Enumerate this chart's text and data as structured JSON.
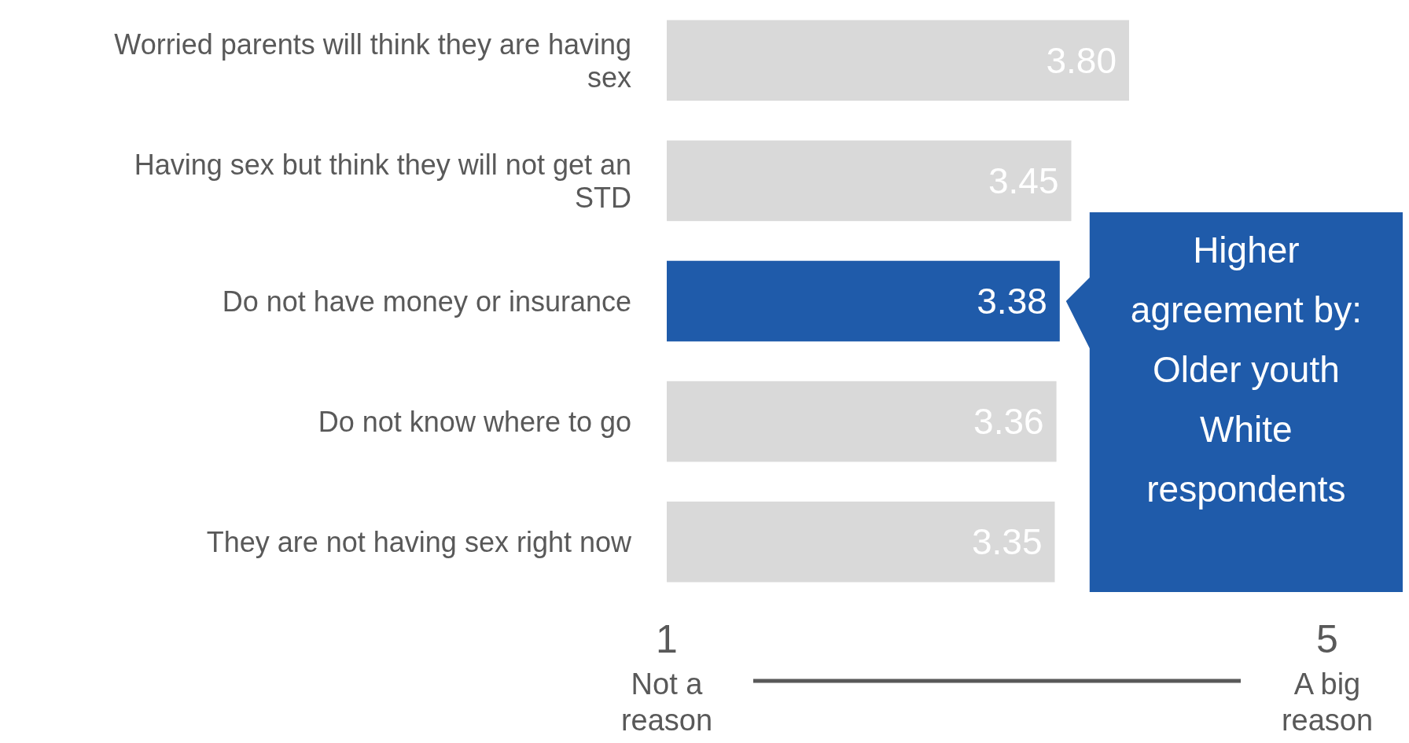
{
  "chart_data": {
    "type": "bar",
    "orientation": "horizontal",
    "categories": [
      "Worried parents will think they are having sex",
      "Having sex but think they will not get an STD",
      "Do not have money or insurance",
      "Do not know where to go",
      "They are not having sex right now"
    ],
    "values": [
      3.8,
      3.45,
      3.38,
      3.36,
      3.35
    ],
    "colors": [
      "#d9d9d9",
      "#d9d9d9",
      "#1f5baa",
      "#d9d9d9",
      "#d9d9d9"
    ],
    "value_labels": [
      "3.80",
      "3.45",
      "3.38",
      "3.36",
      "3.35"
    ],
    "xlim": [
      1,
      5
    ],
    "xticks": [
      1,
      5
    ],
    "annotations": [
      {
        "text": "Higher agreement by: Older youth White respondents",
        "x": 3.38,
        "y": "Do not have money or insurance"
      },
      "Not a reason",
      "A big reason"
    ]
  }
}
